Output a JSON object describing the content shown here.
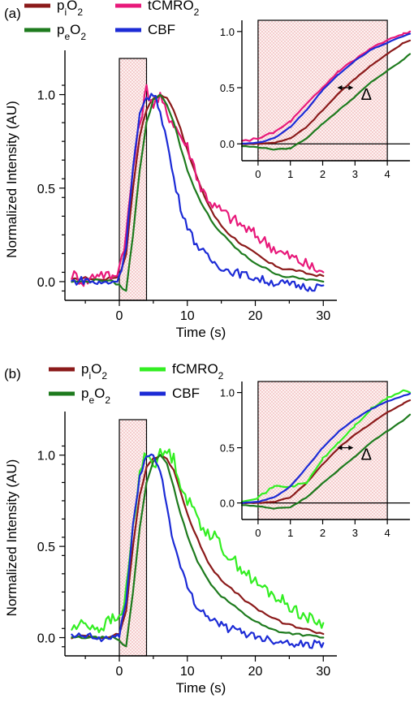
{
  "chart_data": [
    {
      "panel_label": "(a)",
      "type": "line",
      "xlabel": "Time (s)",
      "ylabel": "Normalized Intensity (AU)",
      "xlim": [
        -8,
        32
      ],
      "ylim": [
        -0.1,
        1.15
      ],
      "xticks": [
        "0",
        "10",
        "20",
        "30"
      ],
      "yticks": [
        "0.0",
        "0.5",
        "1.0"
      ],
      "stimulus_window": [
        0,
        4
      ],
      "legend": [
        "piO2",
        "tCMRO2",
        "peO2",
        "CBF"
      ],
      "series": [
        {
          "name": "piO2",
          "color": "#8b1a1a",
          "x": [
            -7,
            -5,
            -3,
            -1,
            0,
            1,
            2,
            3,
            4,
            5,
            6,
            7,
            8,
            9,
            10,
            11,
            12,
            13,
            14,
            15,
            16,
            18,
            20,
            22,
            24,
            26,
            28,
            30
          ],
          "y": [
            0.01,
            0.02,
            0.01,
            0.02,
            0.03,
            0.15,
            0.5,
            0.78,
            0.92,
            0.98,
            1.0,
            0.98,
            0.92,
            0.82,
            0.7,
            0.6,
            0.5,
            0.42,
            0.35,
            0.3,
            0.26,
            0.2,
            0.15,
            0.1,
            0.07,
            0.06,
            0.04,
            0.03
          ]
        },
        {
          "name": "tCMRO2",
          "color": "#e8197a",
          "x": [
            -7,
            -5,
            -3,
            -1,
            0,
            1,
            2,
            3,
            4,
            5,
            6,
            7,
            8,
            9,
            10,
            11,
            12,
            13,
            14,
            15,
            16,
            18,
            20,
            22,
            24,
            26,
            28,
            30
          ],
          "y": [
            0.04,
            0.0,
            0.05,
            0.02,
            0.08,
            0.25,
            0.6,
            0.85,
            1.03,
            0.95,
            0.98,
            0.9,
            0.85,
            0.78,
            0.72,
            0.62,
            0.5,
            0.45,
            0.4,
            0.38,
            0.35,
            0.3,
            0.25,
            0.2,
            0.15,
            0.12,
            0.08,
            0.05
          ]
        },
        {
          "name": "peO2",
          "color": "#1e7b1e",
          "x": [
            -7,
            -5,
            -3,
            -1,
            0,
            1,
            2,
            3,
            4,
            5,
            6,
            7,
            8,
            9,
            10,
            11,
            12,
            13,
            14,
            15,
            16,
            18,
            20,
            22,
            24,
            26,
            28,
            30
          ],
          "y": [
            0.0,
            0.0,
            0.01,
            0.0,
            -0.02,
            -0.05,
            0.25,
            0.6,
            0.85,
            0.97,
            1.0,
            0.95,
            0.85,
            0.72,
            0.6,
            0.5,
            0.42,
            0.36,
            0.3,
            0.26,
            0.22,
            0.15,
            0.1,
            0.06,
            0.03,
            0.02,
            0.01,
            0.0
          ]
        },
        {
          "name": "CBF",
          "color": "#1c2bd6",
          "x": [
            -7,
            -5,
            -3,
            -1,
            0,
            1,
            2,
            3,
            4,
            5,
            6,
            7,
            8,
            9,
            10,
            11,
            12,
            13,
            14,
            15,
            16,
            18,
            20,
            22,
            24,
            26,
            28,
            30
          ],
          "y": [
            0.0,
            0.01,
            -0.01,
            0.0,
            0.02,
            0.2,
            0.6,
            0.88,
            0.99,
            1.0,
            0.92,
            0.75,
            0.55,
            0.4,
            0.3,
            0.22,
            0.17,
            0.13,
            0.1,
            0.08,
            0.06,
            0.04,
            0.02,
            0.0,
            -0.01,
            -0.02,
            -0.03,
            -0.02
          ]
        }
      ],
      "inset": {
        "xlim": [
          -0.5,
          4.7
        ],
        "ylim": [
          -0.15,
          1.1
        ],
        "xticks": [
          "0",
          "1",
          "2",
          "3",
          "4"
        ],
        "yticks": [
          "0.0",
          "0.5",
          "1.0"
        ],
        "annotation": "Δ",
        "series": [
          {
            "name": "piO2",
            "x": [
              -0.5,
              0,
              0.5,
              1,
              1.5,
              2,
              2.5,
              3,
              3.5,
              4,
              4.5,
              4.7
            ],
            "y": [
              0.0,
              0.0,
              0.01,
              0.05,
              0.15,
              0.3,
              0.45,
              0.58,
              0.7,
              0.8,
              0.9,
              0.92
            ]
          },
          {
            "name": "tCMRO2",
            "x": [
              -0.5,
              0,
              0.5,
              1,
              1.5,
              2,
              2.5,
              3,
              3.5,
              4,
              4.5,
              4.7
            ],
            "y": [
              0.02,
              0.05,
              0.1,
              0.2,
              0.35,
              0.5,
              0.65,
              0.75,
              0.85,
              0.92,
              0.98,
              1.0
            ]
          },
          {
            "name": "peO2",
            "x": [
              -0.5,
              0,
              0.5,
              1,
              1.5,
              2,
              2.5,
              3,
              3.5,
              4,
              4.5,
              4.7
            ],
            "y": [
              -0.02,
              -0.03,
              -0.05,
              -0.04,
              0.05,
              0.18,
              0.3,
              0.42,
              0.55,
              0.65,
              0.75,
              0.8
            ]
          },
          {
            "name": "CBF",
            "x": [
              -0.5,
              0,
              0.5,
              1,
              1.5,
              2,
              2.5,
              3,
              3.5,
              4,
              4.5,
              4.7
            ],
            "y": [
              0.0,
              0.01,
              0.05,
              0.15,
              0.3,
              0.48,
              0.62,
              0.74,
              0.84,
              0.9,
              0.96,
              0.98
            ]
          }
        ]
      }
    },
    {
      "panel_label": "(b)",
      "type": "line",
      "xlabel": "Time (s)",
      "ylabel": "Normalized Intensity (AU)",
      "xlim": [
        -8,
        32
      ],
      "ylim": [
        -0.1,
        1.15
      ],
      "xticks": [
        "0",
        "10",
        "20",
        "30"
      ],
      "yticks": [
        "0.0",
        "0.5",
        "1.0"
      ],
      "stimulus_window": [
        0,
        4
      ],
      "legend": [
        "piO2",
        "fCMRO2",
        "peO2",
        "CBF"
      ],
      "series": [
        {
          "name": "piO2",
          "color": "#8b1a1a",
          "x": [
            -7,
            -5,
            -3,
            -1,
            0,
            1,
            2,
            3,
            4,
            5,
            6,
            7,
            8,
            9,
            10,
            11,
            12,
            13,
            14,
            15,
            16,
            18,
            20,
            22,
            24,
            26,
            28,
            30
          ],
          "y": [
            0.0,
            0.01,
            0.0,
            0.01,
            0.02,
            0.15,
            0.5,
            0.78,
            0.93,
            0.98,
            1.0,
            0.98,
            0.92,
            0.8,
            0.68,
            0.58,
            0.5,
            0.42,
            0.36,
            0.32,
            0.28,
            0.22,
            0.16,
            0.12,
            0.08,
            0.06,
            0.04,
            0.02
          ]
        },
        {
          "name": "fCMRO2",
          "color": "#33ee22",
          "x": [
            -7,
            -5,
            -3,
            -1,
            0,
            1,
            2,
            3,
            4,
            5,
            6,
            7,
            8,
            9,
            10,
            11,
            12,
            13,
            14,
            15,
            16,
            18,
            20,
            22,
            24,
            26,
            28,
            30
          ],
          "y": [
            0.05,
            0.08,
            0.05,
            0.1,
            0.1,
            0.25,
            0.6,
            0.9,
            1.02,
            0.95,
            1.0,
            1.02,
            0.98,
            0.85,
            0.75,
            0.7,
            0.62,
            0.58,
            0.55,
            0.5,
            0.45,
            0.38,
            0.3,
            0.25,
            0.2,
            0.15,
            0.1,
            0.08
          ]
        },
        {
          "name": "peO2",
          "color": "#1e7b1e",
          "x": [
            -7,
            -5,
            -3,
            -1,
            0,
            1,
            2,
            3,
            4,
            5,
            6,
            7,
            8,
            9,
            10,
            11,
            12,
            13,
            14,
            15,
            16,
            18,
            20,
            22,
            24,
            26,
            28,
            30
          ],
          "y": [
            0.0,
            0.0,
            0.0,
            0.0,
            -0.02,
            -0.05,
            0.25,
            0.6,
            0.85,
            0.97,
            1.0,
            0.95,
            0.82,
            0.68,
            0.56,
            0.46,
            0.38,
            0.32,
            0.27,
            0.23,
            0.2,
            0.14,
            0.09,
            0.05,
            0.03,
            0.02,
            0.01,
            0.0
          ]
        },
        {
          "name": "CBF",
          "color": "#1c2bd6",
          "x": [
            -7,
            -5,
            -3,
            -1,
            0,
            1,
            2,
            3,
            4,
            5,
            6,
            7,
            8,
            9,
            10,
            11,
            12,
            13,
            14,
            15,
            16,
            18,
            20,
            22,
            24,
            26,
            28,
            30
          ],
          "y": [
            0.0,
            0.01,
            -0.01,
            0.0,
            0.02,
            0.2,
            0.6,
            0.9,
            0.99,
            1.0,
            0.92,
            0.72,
            0.52,
            0.38,
            0.28,
            0.2,
            0.15,
            0.12,
            0.09,
            0.07,
            0.05,
            0.03,
            0.01,
            -0.01,
            -0.02,
            -0.03,
            -0.04,
            -0.03
          ]
        }
      ],
      "inset": {
        "xlim": [
          -0.5,
          4.7
        ],
        "ylim": [
          -0.15,
          1.1
        ],
        "xticks": [
          "0",
          "1",
          "2",
          "3",
          "4"
        ],
        "yticks": [
          "0.0",
          "0.5",
          "1.0"
        ],
        "annotation": "Δ",
        "series": [
          {
            "name": "piO2",
            "x": [
              -0.5,
              0,
              0.5,
              1,
              1.5,
              2,
              2.5,
              3,
              3.5,
              4,
              4.5,
              4.7
            ],
            "y": [
              0.0,
              0.0,
              0.01,
              0.05,
              0.18,
              0.35,
              0.5,
              0.62,
              0.72,
              0.82,
              0.9,
              0.93
            ]
          },
          {
            "name": "fCMRO2",
            "x": [
              -0.5,
              0,
              0.5,
              1,
              1.5,
              2,
              2.5,
              3,
              3.5,
              4,
              4.5,
              4.7
            ],
            "y": [
              0.02,
              0.05,
              0.15,
              0.15,
              0.18,
              0.4,
              0.55,
              0.7,
              0.85,
              0.95,
              1.02,
              1.0
            ]
          },
          {
            "name": "peO2",
            "x": [
              -0.5,
              0,
              0.5,
              1,
              1.5,
              2,
              2.5,
              3,
              3.5,
              4,
              4.5,
              4.7
            ],
            "y": [
              -0.02,
              -0.03,
              -0.05,
              -0.04,
              0.05,
              0.18,
              0.3,
              0.42,
              0.55,
              0.65,
              0.75,
              0.8
            ]
          },
          {
            "name": "CBF",
            "x": [
              -0.5,
              0,
              0.5,
              1,
              1.5,
              2,
              2.5,
              3,
              3.5,
              4,
              4.5,
              4.7
            ],
            "y": [
              0.0,
              0.01,
              0.05,
              0.15,
              0.32,
              0.5,
              0.65,
              0.76,
              0.85,
              0.92,
              0.97,
              0.99
            ]
          }
        ]
      }
    }
  ]
}
